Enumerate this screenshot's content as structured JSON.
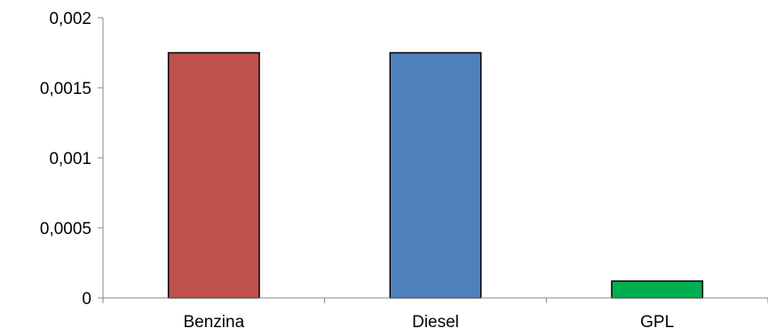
{
  "chart_data": {
    "type": "bar",
    "categories": [
      "Benzina",
      "Diesel",
      "GPL"
    ],
    "values": [
      0.00175,
      0.00175,
      0.00012
    ],
    "ylim": [
      0,
      0.002
    ],
    "yticks": [
      "0",
      "0,0005",
      "0,001",
      "0,0015",
      "0,002"
    ],
    "ytick_values": [
      0,
      0.0005,
      0.001,
      0.0015,
      0.002
    ],
    "bar_colors": [
      "#c0504d",
      "#4f81bd",
      "#00b050"
    ],
    "grid": false,
    "legend": "none"
  }
}
